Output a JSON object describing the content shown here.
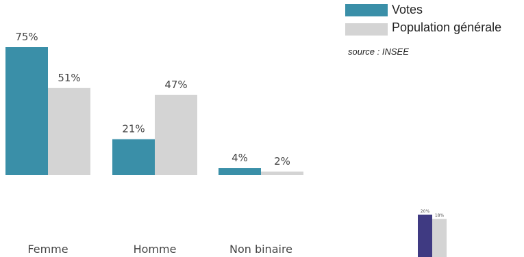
{
  "chart_data": [
    {
      "type": "bar",
      "categories": [
        "Femme",
        "Homme",
        "Non binaire"
      ],
      "series": [
        {
          "name": "Votes",
          "values": [
            75,
            21,
            4
          ],
          "labels": [
            "75%",
            "21%",
            "4%"
          ],
          "color": "#3a8fa8"
        },
        {
          "name": "Population générale",
          "values": [
            51,
            47,
            2
          ],
          "labels": [
            "51%",
            "47%",
            "2%"
          ],
          "color": "#d4d4d4"
        }
      ],
      "ylim": [
        0,
        75
      ],
      "source": "source : INSEE",
      "legend": "top-right",
      "grid": false
    },
    {
      "type": "bar",
      "categories": [
        ""
      ],
      "series": [
        {
          "values": [
            20
          ],
          "labels": [
            "20%"
          ],
          "color": "#3f3a82"
        },
        {
          "values": [
            18
          ],
          "labels": [
            "18%"
          ],
          "color": "#d4d4d4"
        }
      ],
      "ylim": [
        0,
        20
      ],
      "grid": false
    }
  ]
}
